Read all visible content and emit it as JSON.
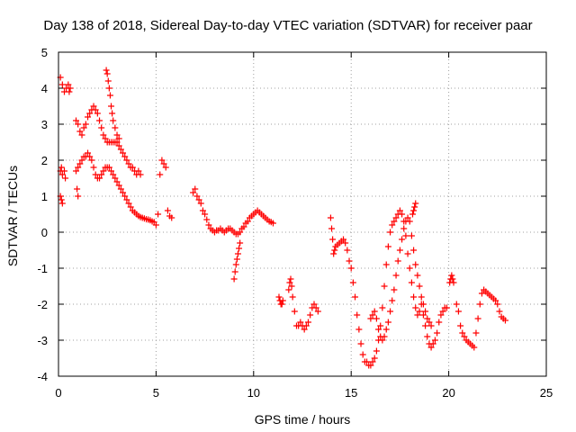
{
  "chart_data": {
    "type": "scatter",
    "title": "Day 138 of 2018, Sidereal Day-to-day VTEC variation (SDTVAR) for receiver paar",
    "xlabel": "GPS time / hours",
    "ylabel": "SDTVAR / TECUs",
    "xlim": [
      0,
      25
    ],
    "ylim": [
      -4,
      5
    ],
    "xticks": [
      0,
      5,
      10,
      15,
      20,
      25
    ],
    "yticks": [
      -4,
      -3,
      -2,
      -1,
      0,
      1,
      2,
      3,
      4,
      5
    ],
    "grid": true,
    "marker": "+",
    "color": "#ff0000",
    "series": [
      {
        "name": "SDTVAR",
        "x": [
          0.1,
          0.2,
          0.3,
          0.4,
          0.5,
          0.55,
          0.6,
          0.1,
          0.15,
          0.2,
          0.3,
          0.35,
          0.1,
          0.15,
          0.2,
          0.9,
          1.0,
          1.1,
          1.2,
          1.3,
          1.4,
          1.5,
          1.6,
          1.7,
          1.8,
          1.9,
          2.0,
          2.1,
          2.2,
          2.3,
          2.4,
          2.5,
          2.6,
          2.7,
          2.8,
          2.9,
          3.0,
          3.1,
          3.2,
          3.3,
          3.4,
          3.5,
          3.6,
          3.7,
          3.8,
          3.9,
          4.0,
          4.1,
          4.2,
          0.9,
          1.0,
          1.1,
          1.2,
          1.3,
          1.4,
          1.5,
          1.6,
          1.7,
          1.8,
          1.9,
          2.0,
          2.1,
          2.2,
          2.3,
          2.4,
          2.5,
          2.6,
          2.7,
          2.8,
          2.9,
          3.0,
          3.1,
          3.2,
          3.3,
          3.4,
          3.5,
          3.6,
          3.7,
          3.8,
          3.9,
          4.0,
          4.1,
          4.2,
          4.3,
          4.4,
          4.5,
          4.6,
          4.7,
          4.8,
          4.9,
          5.0,
          5.1,
          5.2,
          5.3,
          5.4,
          5.5,
          5.6,
          5.7,
          5.8,
          2.45,
          2.5,
          2.55,
          2.6,
          2.65,
          2.7,
          2.75,
          2.8,
          2.9,
          3.0,
          3.1,
          0.95,
          1.0,
          6.9,
          7.0,
          7.1,
          7.2,
          7.3,
          7.4,
          7.5,
          7.6,
          7.7,
          7.8,
          7.9,
          8.0,
          8.1,
          8.2,
          8.3,
          8.4,
          8.5,
          8.6,
          8.7,
          8.8,
          8.9,
          9.0,
          9.1,
          9.2,
          9.3,
          9.4,
          9.5,
          9.6,
          9.7,
          9.8,
          9.9,
          10.0,
          10.1,
          10.2,
          10.3,
          10.4,
          10.5,
          10.6,
          10.7,
          10.8,
          10.9,
          11.0,
          9.0,
          9.05,
          9.1,
          9.15,
          9.2,
          9.25,
          9.3,
          11.3,
          11.35,
          11.4,
          11.45,
          11.5,
          11.8,
          11.85,
          11.9,
          11.95,
          12.0,
          12.1,
          12.2,
          12.3,
          12.4,
          12.5,
          12.6,
          12.7,
          12.8,
          12.9,
          13.0,
          13.1,
          13.2,
          13.3,
          13.95,
          14.0,
          14.05,
          14.1,
          14.15,
          14.2,
          14.3,
          14.4,
          14.5,
          14.6,
          14.7,
          14.8,
          14.9,
          15.0,
          15.1,
          15.2,
          15.3,
          15.4,
          15.5,
          15.6,
          15.7,
          15.8,
          15.9,
          16.0,
          16.1,
          16.2,
          16.3,
          16.4,
          16.5,
          16.6,
          16.7,
          16.8,
          16.9,
          17.0,
          17.1,
          17.2,
          17.3,
          17.4,
          17.5,
          17.6,
          17.7,
          17.8,
          17.9,
          18.0,
          18.1,
          18.2,
          18.3,
          18.4,
          18.5,
          18.6,
          18.7,
          18.8,
          18.9,
          19.0,
          19.1,
          19.2,
          19.3,
          19.4,
          19.5,
          19.6,
          19.7,
          19.8,
          19.9,
          16.0,
          16.1,
          16.2,
          16.3,
          16.4,
          16.5,
          16.6,
          16.7,
          16.8,
          16.9,
          17.0,
          17.1,
          17.2,
          17.3,
          17.4,
          17.5,
          17.6,
          17.7,
          17.8,
          17.9,
          18.0,
          18.1,
          18.2,
          18.3,
          18.4,
          18.5,
          18.6,
          18.7,
          18.8,
          18.9,
          19.0,
          19.1,
          18.15,
          18.2,
          18.25,
          18.3,
          20.05,
          20.1,
          20.15,
          20.2,
          20.25,
          20.4,
          20.5,
          20.6,
          20.7,
          20.8,
          20.9,
          21.0,
          21.1,
          21.2,
          21.3,
          21.4,
          21.5,
          21.6,
          21.7,
          21.8,
          21.9,
          22.0,
          22.1,
          22.2,
          22.3,
          22.4,
          22.5,
          22.6,
          22.7,
          22.8,
          22.9
        ],
        "y": [
          4.3,
          4.1,
          3.9,
          4.0,
          4.1,
          3.9,
          4.0,
          1.7,
          1.8,
          1.6,
          1.7,
          1.5,
          1.0,
          0.9,
          0.8,
          3.1,
          3.0,
          2.8,
          2.7,
          2.9,
          3.0,
          3.2,
          3.3,
          3.4,
          3.5,
          3.4,
          3.3,
          3.1,
          2.9,
          2.7,
          2.6,
          2.5,
          2.5,
          2.5,
          2.5,
          2.5,
          2.5,
          2.4,
          2.3,
          2.2,
          2.1,
          2.0,
          1.9,
          1.8,
          1.8,
          1.7,
          1.6,
          1.7,
          1.6,
          1.7,
          1.8,
          1.9,
          2.0,
          2.1,
          2.1,
          2.2,
          2.1,
          2.0,
          1.8,
          1.6,
          1.5,
          1.5,
          1.6,
          1.7,
          1.8,
          1.8,
          1.8,
          1.7,
          1.6,
          1.5,
          1.4,
          1.3,
          1.2,
          1.1,
          1.0,
          0.9,
          0.8,
          0.7,
          0.6,
          0.55,
          0.5,
          0.45,
          0.42,
          0.4,
          0.38,
          0.36,
          0.35,
          0.33,
          0.3,
          0.28,
          0.2,
          0.5,
          1.6,
          2.0,
          1.9,
          1.8,
          0.6,
          0.45,
          0.4,
          4.5,
          4.4,
          4.2,
          4.0,
          3.8,
          3.5,
          3.3,
          3.1,
          2.9,
          2.7,
          2.6,
          1.2,
          1.0,
          1.1,
          1.2,
          1.0,
          0.9,
          0.8,
          0.6,
          0.5,
          0.35,
          0.2,
          0.1,
          0.05,
          0.0,
          0.05,
          0.05,
          0.1,
          0.05,
          0.0,
          0.05,
          0.1,
          0.1,
          0.05,
          0.0,
          -0.05,
          -0.05,
          0.0,
          0.1,
          0.15,
          0.25,
          0.3,
          0.4,
          0.45,
          0.5,
          0.55,
          0.6,
          0.55,
          0.5,
          0.45,
          0.4,
          0.35,
          0.3,
          0.28,
          0.25,
          -1.3,
          -1.1,
          -0.9,
          -0.75,
          -0.6,
          -0.45,
          -0.3,
          -1.8,
          -1.9,
          -2.0,
          -2.0,
          -1.9,
          -1.6,
          -1.4,
          -1.3,
          -1.5,
          -1.8,
          -2.2,
          -2.6,
          -2.6,
          -2.5,
          -2.6,
          -2.7,
          -2.6,
          -2.5,
          -2.3,
          -2.1,
          -2.0,
          -2.1,
          -2.2,
          0.4,
          0.1,
          -0.2,
          -0.6,
          -0.5,
          -0.4,
          -0.35,
          -0.3,
          -0.25,
          -0.2,
          -0.3,
          -0.5,
          -0.8,
          -1.0,
          -1.4,
          -1.8,
          -2.3,
          -2.7,
          -3.1,
          -3.4,
          -3.6,
          -3.6,
          -3.7,
          -3.7,
          -3.6,
          -3.5,
          -3.3,
          -3.0,
          -2.6,
          -2.1,
          -1.5,
          -0.9,
          -0.4,
          0.0,
          0.2,
          0.3,
          0.4,
          0.5,
          0.6,
          0.5,
          0.3,
          -0.1,
          -0.6,
          -1.0,
          -1.4,
          -1.8,
          -2.1,
          -2.3,
          -2.2,
          -2.0,
          -2.3,
          -2.6,
          -2.9,
          -3.1,
          -3.2,
          -3.1,
          -3.0,
          -2.8,
          -2.5,
          -2.3,
          -2.2,
          -2.1,
          -2.1,
          -2.4,
          -2.3,
          -2.2,
          -2.4,
          -2.7,
          -2.9,
          -3.0,
          -2.9,
          -2.7,
          -2.5,
          -2.2,
          -1.9,
          -1.6,
          -1.2,
          -0.8,
          -0.5,
          -0.2,
          0.1,
          0.3,
          0.4,
          0.3,
          -0.1,
          -0.5,
          -0.9,
          -1.2,
          -1.5,
          -1.8,
          -2.0,
          -2.2,
          -2.4,
          -2.5,
          -2.6,
          0.5,
          0.6,
          0.7,
          0.8,
          -1.4,
          -1.3,
          -1.2,
          -1.3,
          -1.4,
          -2.0,
          -2.2,
          -2.6,
          -2.8,
          -2.9,
          -3.0,
          -3.05,
          -3.1,
          -3.15,
          -3.2,
          -2.8,
          -2.4,
          -2.0,
          -1.7,
          -1.6,
          -1.65,
          -1.7,
          -1.75,
          -1.8,
          -1.85,
          -1.9,
          -2.0,
          -2.2,
          -2.35,
          -2.4,
          -2.45
        ]
      }
    ]
  }
}
